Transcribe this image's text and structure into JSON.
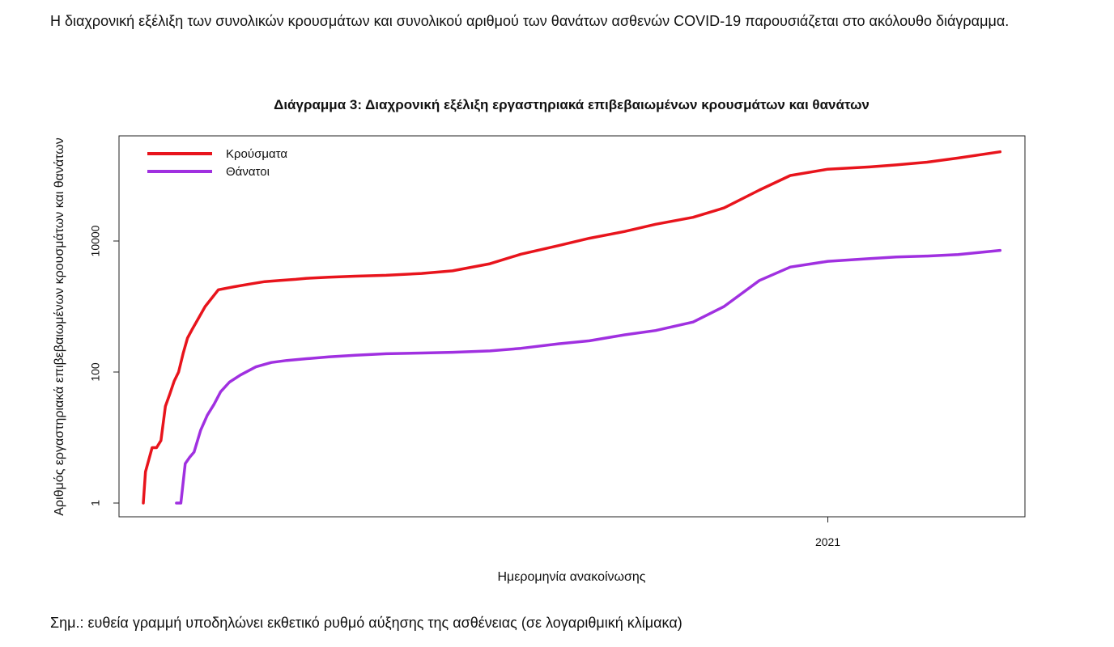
{
  "intro_text": "Η διαχρονική εξέλιξη των συνολικών κρουσμάτων και συνολικού αριθμού των θανάτων ασθενών COVID-19 παρουσιάζεται στο ακόλουθο διάγραμμα.",
  "note_text": "Σημ.: ευθεία γραμμή υποδηλώνει εκθετικό ρυθμό αύξησης της ασθένειας (σε λογαριθμική κλίμακα)",
  "colors": {
    "cases": "#e8141c",
    "deaths": "#a030e0"
  },
  "chart_data": {
    "type": "line",
    "title": "Διάγραμμα 3: Διαχρονική εξέλιξη εργαστηριακά επιβεβαιωμένων κρουσμάτων και θανάτων",
    "xlabel": "Ημερομηνία ανακοίνωσης",
    "ylabel": "Αριθμός εργαστηριακά επιβεβαιωμένων κρουσμάτων και θανάτων",
    "y_scale": "log",
    "y_ticks": [
      1,
      100,
      10000
    ],
    "y_tick_labels": [
      "1",
      "100",
      "10000"
    ],
    "ylim": [
      1,
      150000
    ],
    "xlim": [
      "2020-02-15",
      "2021-03-21"
    ],
    "x_ticks": [
      "2021-01-01"
    ],
    "x_tick_labels": [
      "2021"
    ],
    "legend_position": "top-left",
    "series": [
      {
        "name": "Κρούσματα",
        "color": "#e8141c",
        "x": [
          "2020-02-26",
          "2020-02-27",
          "2020-02-28",
          "2020-03-01",
          "2020-03-03",
          "2020-03-05",
          "2020-03-07",
          "2020-03-09",
          "2020-03-11",
          "2020-03-13",
          "2020-03-15",
          "2020-03-17",
          "2020-03-19",
          "2020-03-21",
          "2020-03-25",
          "2020-03-31",
          "2020-04-07",
          "2020-04-14",
          "2020-04-21",
          "2020-04-28",
          "2020-05-05",
          "2020-05-10",
          "2020-05-20",
          "2020-06-01",
          "2020-06-15",
          "2020-07-01",
          "2020-07-15",
          "2020-08-01",
          "2020-08-15",
          "2020-09-01",
          "2020-09-15",
          "2020-10-01",
          "2020-10-15",
          "2020-11-01",
          "2020-11-15",
          "2020-12-01",
          "2020-12-15",
          "2021-01-01",
          "2021-01-20",
          "2021-02-01",
          "2021-02-15",
          "2021-03-01",
          "2021-03-20"
        ],
        "y": [
          1,
          3,
          4,
          7,
          7,
          9,
          30,
          46,
          73,
          100,
          190,
          330,
          440,
          580,
          1000,
          1800,
          2000,
          2200,
          2400,
          2500,
          2600,
          2700,
          2800,
          2900,
          3000,
          3200,
          3500,
          4500,
          6300,
          8500,
          11000,
          14000,
          18000,
          23000,
          32000,
          60000,
          100000,
          125000,
          135000,
          145000,
          160000,
          185000,
          230000
        ]
      },
      {
        "name": "Θάνατοι",
        "color": "#a030e0",
        "x": [
          "2020-03-12",
          "2020-03-14",
          "2020-03-16",
          "2020-03-18",
          "2020-03-20",
          "2020-03-23",
          "2020-03-26",
          "2020-03-29",
          "2020-04-01",
          "2020-04-05",
          "2020-04-10",
          "2020-04-17",
          "2020-04-24",
          "2020-05-01",
          "2020-05-10",
          "2020-05-20",
          "2020-06-01",
          "2020-06-15",
          "2020-07-01",
          "2020-07-15",
          "2020-08-01",
          "2020-08-15",
          "2020-09-01",
          "2020-09-15",
          "2020-10-01",
          "2020-10-15",
          "2020-11-01",
          "2020-11-15",
          "2020-12-01",
          "2020-12-15",
          "2021-01-01",
          "2021-01-20",
          "2021-02-01",
          "2021-02-15",
          "2021-03-01",
          "2021-03-20"
        ],
        "y": [
          1,
          1,
          4,
          5,
          6,
          13,
          22,
          32,
          50,
          70,
          90,
          120,
          140,
          150,
          160,
          170,
          180,
          190,
          195,
          200,
          210,
          230,
          270,
          300,
          370,
          430,
          580,
          1000,
          2500,
          4000,
          4900,
          5400,
          5700,
          5900,
          6200,
          7200
        ]
      }
    ]
  }
}
